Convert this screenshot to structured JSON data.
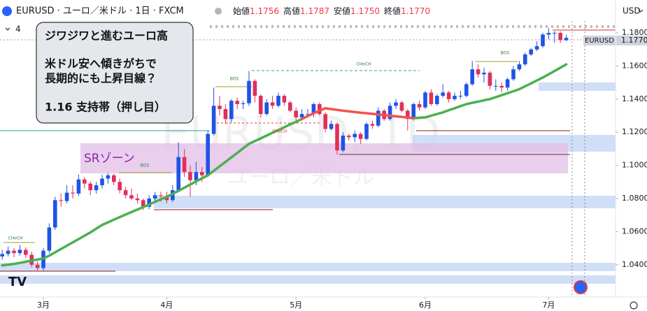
{
  "header": {
    "symbol_line": "EURUSD · ユーロ／米ドル · 1日 · FXCM",
    "ohlc": [
      {
        "label": "始値",
        "value": "1.1756"
      },
      {
        "label": "高値",
        "value": "1.1787"
      },
      {
        "label": "安値",
        "value": "1.1750"
      },
      {
        "label": "終値",
        "value": "1.1770"
      }
    ],
    "currency": "USD",
    "indicator_count": "4"
  },
  "note": {
    "lines": [
      "ジワジワと進むユーロ高",
      "米ドル安へ傾きがちで",
      "長期的にも上昇目線？",
      "1.16 支持帯（押し目）"
    ]
  },
  "chart_data": {
    "type": "candlestick",
    "categories": [
      null,
      null,
      null,
      null,
      null,
      null,
      null,
      "3月",
      null,
      null,
      null,
      null,
      null,
      null,
      null,
      null,
      null,
      null,
      null,
      null,
      null,
      null,
      null,
      null,
      null,
      null,
      null,
      null,
      "4月",
      null,
      null,
      null,
      null,
      null,
      null,
      null,
      null,
      null,
      null,
      null,
      null,
      null,
      null,
      null,
      null,
      null,
      null,
      null,
      null,
      null,
      "5月",
      null,
      null,
      null,
      null,
      null,
      null,
      null,
      null,
      null,
      null,
      null,
      null,
      null,
      null,
      null,
      null,
      null,
      null,
      null,
      null,
      null,
      "6月",
      null,
      null,
      null,
      null,
      null,
      null,
      null,
      null,
      null,
      null,
      null,
      null,
      null,
      null,
      null,
      null,
      null,
      null,
      null,
      null,
      "7月",
      null,
      null,
      null
    ],
    "ylim": [
      1.0205,
      1.1872
    ],
    "yticks": [
      {
        "value": 1.18,
        "label": "1.1800"
      },
      {
        "value": 1.16,
        "label": "1.1600"
      },
      {
        "value": 1.14,
        "label": "1.1400"
      },
      {
        "value": 1.12,
        "label": "1.1200"
      },
      {
        "value": 1.1,
        "label": "1.1000"
      },
      {
        "value": 1.08,
        "label": "1.0800"
      },
      {
        "value": 1.06,
        "label": "1.0600"
      },
      {
        "value": 1.04,
        "label": "1.0400"
      }
    ],
    "up_color": "#1e53e5",
    "down_color": "#e0305a",
    "series": [
      {
        "type": "candlestick",
        "values": [
          [
            1.045,
            1.049,
            1.043,
            1.0465
          ],
          [
            1.0465,
            1.051,
            1.045,
            1.0485
          ],
          [
            1.0485,
            1.05,
            1.0445,
            1.047
          ],
          [
            1.047,
            1.052,
            1.0455,
            1.049
          ],
          [
            1.049,
            1.0505,
            1.044,
            1.046
          ],
          [
            1.046,
            1.048,
            1.0385,
            1.04
          ],
          [
            1.04,
            1.042,
            1.036,
            1.038
          ],
          [
            1.038,
            1.05,
            1.0365,
            1.0485
          ],
          [
            1.0485,
            1.065,
            1.047,
            1.0625
          ],
          [
            1.0625,
            1.081,
            1.061,
            1.079
          ],
          [
            1.079,
            1.083,
            1.075,
            1.0785
          ],
          [
            1.0785,
            1.088,
            1.077,
            1.0835
          ],
          [
            1.0835,
            1.088,
            1.08,
            1.083
          ],
          [
            1.083,
            1.0945,
            1.0815,
            1.0915
          ],
          [
            1.0915,
            1.093,
            1.086,
            1.089
          ],
          [
            1.089,
            1.0905,
            1.082,
            1.085
          ],
          [
            1.085,
            1.09,
            1.083,
            1.088
          ],
          [
            1.088,
            1.0945,
            1.086,
            1.092
          ],
          [
            1.092,
            1.0955,
            1.089,
            1.094
          ],
          [
            1.094,
            1.095,
            1.088,
            1.09
          ],
          [
            1.09,
            1.092,
            1.083,
            1.085
          ],
          [
            1.085,
            1.087,
            1.08,
            1.082
          ],
          [
            1.082,
            1.086,
            1.079,
            1.08
          ],
          [
            1.08,
            1.083,
            1.077,
            1.079
          ],
          [
            1.079,
            1.08,
            1.073,
            1.075
          ],
          [
            1.075,
            1.082,
            1.0735,
            1.08
          ],
          [
            1.08,
            1.084,
            1.078,
            1.082
          ],
          [
            1.082,
            1.084,
            1.078,
            1.0815
          ],
          [
            1.0815,
            1.084,
            1.077,
            1.079
          ],
          [
            1.079,
            1.088,
            1.078,
            1.085
          ],
          [
            1.085,
            1.114,
            1.084,
            1.105
          ],
          [
            1.105,
            1.11,
            1.093,
            1.096
          ],
          [
            1.096,
            1.1,
            1.081,
            1.091
          ],
          [
            1.091,
            1.102,
            1.088,
            1.096
          ],
          [
            1.096,
            1.099,
            1.09,
            1.094
          ],
          [
            1.094,
            1.121,
            1.093,
            1.119
          ],
          [
            1.119,
            1.147,
            1.118,
            1.136
          ],
          [
            1.136,
            1.142,
            1.13,
            1.134
          ],
          [
            1.134,
            1.137,
            1.125,
            1.128
          ],
          [
            1.128,
            1.14,
            1.126,
            1.139
          ],
          [
            1.139,
            1.141,
            1.134,
            1.137
          ],
          [
            1.137,
            1.139,
            1.134,
            1.1375
          ],
          [
            1.1375,
            1.157,
            1.136,
            1.151
          ],
          [
            1.151,
            1.152,
            1.138,
            1.142
          ],
          [
            1.142,
            1.143,
            1.129,
            1.131
          ],
          [
            1.131,
            1.14,
            1.13,
            1.138
          ],
          [
            1.138,
            1.142,
            1.134,
            1.136
          ],
          [
            1.136,
            1.144,
            1.135,
            1.142
          ],
          [
            1.142,
            1.143,
            1.136,
            1.138
          ],
          [
            1.138,
            1.139,
            1.132,
            1.133
          ],
          [
            1.133,
            1.135,
            1.127,
            1.129
          ],
          [
            1.129,
            1.134,
            1.128,
            1.131
          ],
          [
            1.131,
            1.134,
            1.129,
            1.131
          ],
          [
            1.131,
            1.138,
            1.129,
            1.137
          ],
          [
            1.137,
            1.138,
            1.13,
            1.131
          ],
          [
            1.131,
            1.132,
            1.12,
            1.122
          ],
          [
            1.122,
            1.127,
            1.121,
            1.125
          ],
          [
            1.125,
            1.126,
            1.1065,
            1.109
          ],
          [
            1.109,
            1.12,
            1.108,
            1.118
          ],
          [
            1.118,
            1.119,
            1.115,
            1.117
          ],
          [
            1.117,
            1.121,
            1.114,
            1.119
          ],
          [
            1.119,
            1.12,
            1.113,
            1.116
          ],
          [
            1.116,
            1.126,
            1.115,
            1.125
          ],
          [
            1.125,
            1.127,
            1.122,
            1.124
          ],
          [
            1.124,
            1.135,
            1.123,
            1.133
          ],
          [
            1.133,
            1.134,
            1.127,
            1.128
          ],
          [
            1.128,
            1.138,
            1.127,
            1.136
          ],
          [
            1.136,
            1.14,
            1.134,
            1.138
          ],
          [
            1.138,
            1.139,
            1.132,
            1.133
          ],
          [
            1.133,
            1.134,
            1.121,
            1.128
          ],
          [
            1.128,
            1.138,
            1.127,
            1.137
          ],
          [
            1.137,
            1.139,
            1.133,
            1.135
          ],
          [
            1.135,
            1.145,
            1.134,
            1.144
          ],
          [
            1.144,
            1.146,
            1.136,
            1.137
          ],
          [
            1.137,
            1.143,
            1.136,
            1.142
          ],
          [
            1.142,
            1.149,
            1.141,
            1.144
          ],
          [
            1.144,
            1.145,
            1.138,
            1.14
          ],
          [
            1.14,
            1.144,
            1.139,
            1.142
          ],
          [
            1.142,
            1.145,
            1.14,
            1.142
          ],
          [
            1.142,
            1.15,
            1.141,
            1.149
          ],
          [
            1.149,
            1.163,
            1.148,
            1.158
          ],
          [
            1.158,
            1.161,
            1.153,
            1.155
          ],
          [
            1.155,
            1.159,
            1.15,
            1.156
          ],
          [
            1.156,
            1.157,
            1.146,
            1.148
          ],
          [
            1.148,
            1.152,
            1.145,
            1.148
          ],
          [
            1.148,
            1.15,
            1.144,
            1.147
          ],
          [
            1.147,
            1.153,
            1.145,
            1.152
          ],
          [
            1.152,
            1.16,
            1.151,
            1.158
          ],
          [
            1.158,
            1.163,
            1.157,
            1.161
          ],
          [
            1.161,
            1.168,
            1.16,
            1.167
          ],
          [
            1.167,
            1.171,
            1.166,
            1.17
          ],
          [
            1.17,
            1.175,
            1.169,
            1.172
          ],
          [
            1.172,
            1.18,
            1.171,
            1.179
          ],
          [
            1.179,
            1.183,
            1.176,
            1.18
          ],
          [
            1.18,
            1.181,
            1.174,
            1.18
          ],
          [
            1.18,
            1.181,
            1.174,
            1.1756
          ],
          [
            1.1756,
            1.1787,
            1.175,
            1.177
          ]
        ]
      },
      {
        "type": "line",
        "color": "#4caf50",
        "values": [
          1.0396,
          1.04,
          1.0405,
          1.0411,
          1.0418,
          1.0425,
          1.0431,
          1.0438,
          1.0455,
          1.0475,
          1.0495,
          1.0515,
          1.0535,
          1.0555,
          1.0575,
          1.0595,
          1.0618,
          1.064,
          1.0656,
          1.0672,
          1.0688,
          1.0703,
          1.0718,
          1.0733,
          1.0748,
          1.0763,
          1.078,
          1.0795,
          1.081,
          1.0828,
          1.0846,
          1.0865,
          1.0884,
          1.0903,
          1.0922,
          1.094,
          1.0967,
          1.0994,
          1.1021,
          1.1048,
          1.1075,
          1.1103,
          1.113,
          1.1147,
          1.1163,
          1.118,
          1.1197,
          1.1213,
          1.123,
          1.1247,
          1.1263,
          1.128,
          null,
          null,
          null,
          null,
          null,
          null,
          null,
          null,
          null,
          null,
          null,
          null,
          null,
          null,
          null,
          null,
          null,
          null,
          1.1285,
          1.1287,
          1.129,
          1.13,
          1.131,
          1.132,
          1.1333,
          1.1345,
          1.1358,
          1.137,
          1.1378,
          1.1385,
          1.1393,
          1.14,
          1.1412,
          1.1424,
          1.1436,
          1.1448,
          1.146,
          1.1478,
          1.1495,
          1.1513,
          1.153,
          1.155,
          1.157,
          1.159,
          1.161
        ]
      },
      {
        "type": "line",
        "color": "#ef5350",
        "values": [
          null,
          null,
          null,
          null,
          null,
          null,
          null,
          null,
          null,
          null,
          null,
          null,
          null,
          null,
          null,
          null,
          null,
          null,
          null,
          null,
          null,
          null,
          null,
          null,
          null,
          null,
          null,
          null,
          null,
          null,
          null,
          null,
          null,
          null,
          null,
          null,
          null,
          null,
          null,
          null,
          null,
          null,
          null,
          null,
          null,
          null,
          null,
          null,
          null,
          null,
          null,
          1.128,
          1.1298,
          1.1315,
          1.133,
          1.1345,
          1.134,
          1.1335,
          1.133,
          1.1326,
          1.1322,
          1.1318,
          1.1315,
          1.1311,
          1.1307,
          1.1304,
          1.13,
          1.1296,
          1.1293,
          1.1289,
          1.1285,
          null,
          null,
          null,
          null,
          null,
          null,
          null,
          null,
          null,
          null,
          null,
          null,
          null,
          null,
          null,
          null,
          null,
          null,
          null,
          null,
          null,
          null,
          null,
          null,
          null,
          null
        ]
      }
    ],
    "annotations": [
      "BOS",
      "BOS",
      "BOS",
      "CHoCH",
      "CHoCH",
      "CHoCH"
    ],
    "zone_label": "SRゾーン",
    "price_tag": {
      "symbol": "EURUSD",
      "price": "1.1770"
    },
    "watermark": [
      "EURUSD, 1D",
      "ユーロ／米ドル"
    ]
  }
}
